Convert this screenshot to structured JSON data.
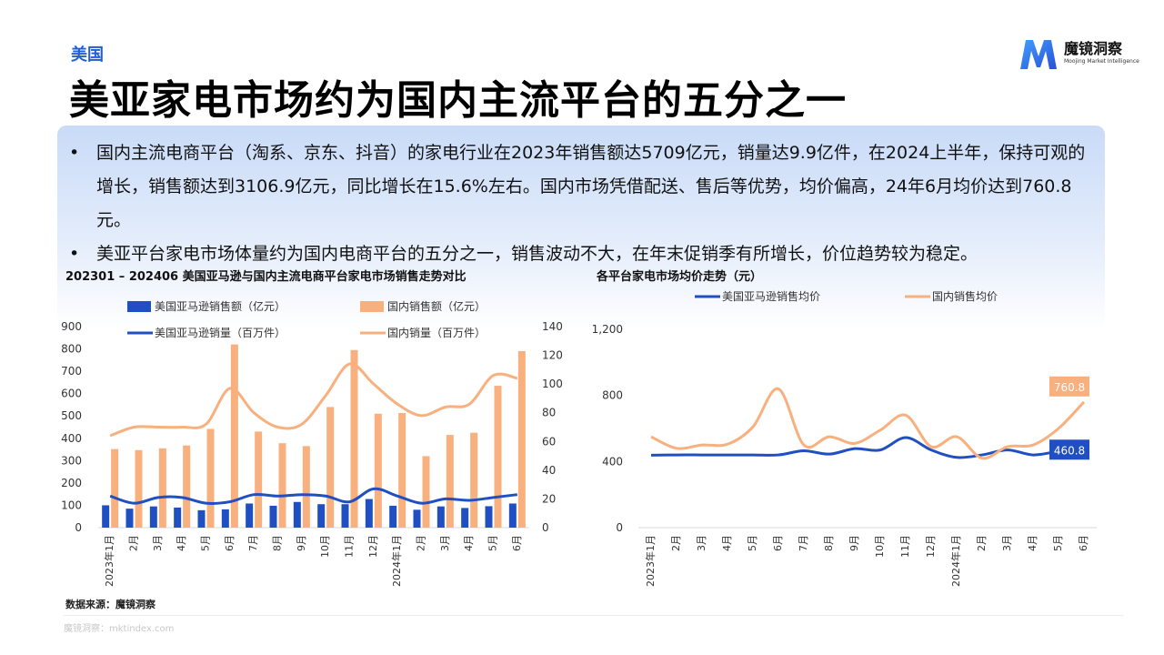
{
  "header": {
    "region": "美国",
    "title": "美亚家电市场约为国内主流平台的五分之一",
    "logo_name": "魔镜洞察",
    "logo_sub": "Moojing Market Intelligence"
  },
  "bullets": [
    "国内主流电商平台（淘系、京东、抖音）的家电行业在2023年销售额达5709亿元，销量达9.9亿件，在2024上半年，保持可观的增长，销售额达到3106.9亿元，同比增长在15.6%左右。国内市场凭借配送、售后等优势，均价偏高，24年6月均价达到760.8元。",
    "美亚平台家电市场体量约为国内电商平台的五分之一，销售波动不大，在年末促销季有所增长，价位趋势较为稳定。"
  ],
  "bullet_marker": "•",
  "source": "数据来源：魔镜洞察",
  "footer": "魔镜洞察：mktindex.com",
  "colors": {
    "blue": "#1f4fc1",
    "orange": "#f8b07e",
    "accent": "#1f5fd6"
  },
  "chart_data": [
    {
      "type": "bar",
      "title": "202301 – 202406 美国亚马逊与国内主流电商平台家电市场销售走势对比",
      "categories": [
        "2023年1月",
        "2月",
        "3月",
        "4月",
        "5月",
        "6月",
        "7月",
        "8月",
        "9月",
        "10月",
        "11月",
        "12月",
        "2024年1月",
        "2月",
        "3月",
        "4月",
        "5月",
        "6月"
      ],
      "ylim": [
        0,
        900
      ],
      "y_ticks": [
        "0",
        "100",
        "200",
        "300",
        "400",
        "500",
        "600",
        "700",
        "800",
        "900"
      ],
      "y2lim": [
        0,
        140
      ],
      "y2_ticks": [
        "0",
        "20",
        "40",
        "60",
        "80",
        "100",
        "120",
        "140"
      ],
      "series": [
        {
          "name": "美国亚马逊销售额（亿元）",
          "kind": "bar",
          "axis": "left",
          "color": "#1f4fc1",
          "values": [
            100,
            85,
            95,
            90,
            78,
            82,
            108,
            98,
            115,
            105,
            105,
            128,
            98,
            80,
            95,
            88,
            96,
            108
          ]
        },
        {
          "name": "国内销售额（亿元）",
          "kind": "bar",
          "axis": "left",
          "color": "#f8b07e",
          "values": [
            352,
            347,
            355,
            368,
            442,
            820,
            430,
            378,
            365,
            540,
            795,
            510,
            513,
            320,
            415,
            425,
            635,
            790
          ]
        },
        {
          "name": "美国亚马逊销量（百万件）",
          "kind": "line",
          "axis": "right",
          "color": "#1f4fc1",
          "values": [
            22,
            17,
            21,
            21,
            17,
            18,
            23,
            22,
            23,
            22,
            18,
            27,
            22,
            17,
            20,
            19,
            21,
            23
          ]
        },
        {
          "name": "国内销量（百万件）",
          "kind": "line",
          "axis": "right",
          "color": "#f8b07e",
          "values": [
            64,
            70,
            70,
            70,
            72,
            97,
            80,
            70,
            72,
            92,
            114,
            100,
            86,
            78,
            84,
            86,
            106,
            104
          ]
        }
      ],
      "legend": "top"
    },
    {
      "type": "line",
      "title": "各平台家电市场均价走势（元）",
      "categories": [
        "2023年1月",
        "2月",
        "3月",
        "4月",
        "5月",
        "6月",
        "7月",
        "8月",
        "9月",
        "10月",
        "11月",
        "12月",
        "2024年1月",
        "2月",
        "3月",
        "4月",
        "5月",
        "6月"
      ],
      "ylim": [
        0,
        1200
      ],
      "y_ticks": [
        "0",
        "400",
        "800",
        "1,200"
      ],
      "series": [
        {
          "name": "美国亚马逊销售均价",
          "color": "#1f4fc1",
          "values": [
            438,
            440,
            440,
            440,
            440,
            440,
            465,
            445,
            478,
            470,
            545,
            470,
            425,
            440,
            470,
            440,
            460,
            460.8
          ]
        },
        {
          "name": "国内销售均价",
          "color": "#f8b07e",
          "values": [
            550,
            480,
            500,
            505,
            610,
            840,
            500,
            550,
            510,
            590,
            680,
            490,
            550,
            420,
            490,
            500,
            600,
            760.8
          ]
        }
      ],
      "end_labels": [
        "460.8",
        "760.8"
      ],
      "legend": "top"
    }
  ]
}
